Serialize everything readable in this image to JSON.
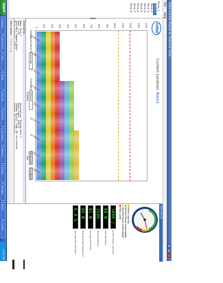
{
  "window": {
    "title": "Data Center Power & Thermal View"
  },
  "menu": [
    "File",
    "Help"
  ],
  "sidebar": {
    "items": [
      {
        "label": "Room_1"
      },
      {
        "label": "Rack_1",
        "selected": true
      },
      {
        "label": "Rack_2"
      },
      {
        "label": "Rack_3"
      },
      {
        "label": "Rack_4"
      },
      {
        "label": "Rack_5"
      },
      {
        "label": "Rack_6"
      },
      {
        "label": "Rack_7"
      },
      {
        "label": "Rack_8"
      }
    ]
  },
  "logo_text": "intel",
  "location": {
    "prefix": "Current Location:",
    "name": "Rack1"
  },
  "chart_data": {
    "type": "bar",
    "stacked": true,
    "ylabel": "Watt",
    "ylim": [
      0,
      1400
    ],
    "yticks": [
      0,
      100,
      200,
      300,
      400,
      500,
      600,
      700,
      800,
      900,
      1000,
      1100,
      1200,
      1300,
      1400
    ],
    "categories": [
      "22:07:01",
      "22:09:11",
      "22:11:21",
      "22:13:31",
      "22:15:41",
      "22:17:51",
      "22:19:01",
      "22:21:11",
      "22:23:21"
    ],
    "colors": [
      "#5b8ed8",
      "#1ea37a",
      "#d9cf33",
      "#e87b20",
      "#d4353a",
      "#9a59b3",
      "#55b7d6",
      "#98c94b",
      "#e5b93a"
    ],
    "series": [
      {
        "values": [
          60,
          60,
          60,
          60,
          60,
          60,
          60,
          60,
          60
        ]
      },
      {
        "values": [
          60,
          60,
          60,
          60,
          60,
          60,
          60,
          60,
          60
        ]
      },
      {
        "values": [
          60,
          60,
          60,
          60,
          60,
          60,
          60,
          60,
          60
        ]
      },
      {
        "values": [
          60,
          60,
          60,
          60,
          60,
          60,
          60,
          60,
          60
        ]
      },
      {
        "values": [
          60,
          60,
          60,
          60,
          60,
          60,
          60,
          60,
          60
        ]
      },
      {
        "values": [
          0,
          0,
          0,
          60,
          60,
          60,
          60,
          60,
          60
        ]
      },
      {
        "values": [
          0,
          0,
          0,
          60,
          60,
          60,
          60,
          60,
          60
        ]
      },
      {
        "values": [
          0,
          0,
          0,
          60,
          60,
          60,
          60,
          60,
          60
        ]
      },
      {
        "values": [
          0,
          0,
          0,
          0,
          0,
          0,
          60,
          60,
          60
        ]
      }
    ],
    "reference_lines": [
      {
        "value": 1200,
        "color": "#e03030"
      },
      {
        "value": 1050,
        "color": "#f0a020"
      }
    ]
  },
  "controls": {
    "display_type_label": "Displayed Value Type",
    "display_type_value": "Average",
    "chart_type_label": "Chart type",
    "chart_type_value": "Stacked Column",
    "show_item_button": "Show Item Info",
    "configure_button": "Configure"
  },
  "description": {
    "header": "Description",
    "lines": [
      "Name:                  Rack_1",
      "Rack:                  1 (0)",
      "Available Compute Power:",
      "Power Capacity:        4800 W",
      "Description:           Testing Rack 1",
      "Power Limit:           1200 W",
      "Thermal Policy:        High CPU Utilization",
      "Average CPU Utilization:"
    ],
    "tabs": [
      "Description",
      "Event Log"
    ]
  },
  "right_panel": {
    "header": "Operations",
    "gauge": {
      "value_fraction": 0.82,
      "needle_color": "#e03030"
    },
    "legend": [
      {
        "label": "Power Capacity",
        "color": "#f0a020"
      },
      {
        "label": "Derated Power Consumption",
        "color": "#6fbf3f"
      },
      {
        "label": "Derated Power Consumption",
        "color": "#e5d84a"
      },
      {
        "label": "Policy Limit",
        "color": "#e03030"
      }
    ],
    "readouts": [
      {
        "value": "1000 / 4800",
        "label": "Actual / Power Capacity"
      },
      {
        "value": "88 W",
        "label": "Average Power"
      },
      {
        "value": "2588",
        "label": "Available Power"
      },
      {
        "value": "81 W",
        "label": "Average CPU Power"
      },
      {
        "value": "86 W",
        "label": "Average Power Headroom"
      },
      {
        "value": "6.9 %",
        "label": "Average CPU Utilization"
      }
    ]
  },
  "taskbar": {
    "start_label": "start",
    "items": [
      "Windows",
      "Data Center",
      "Intel",
      "Power",
      "Thermal",
      "Explorer",
      "Command",
      "Network",
      "Monitor",
      "Manager",
      "Report",
      "Console"
    ],
    "clock": "10:24 PM"
  }
}
